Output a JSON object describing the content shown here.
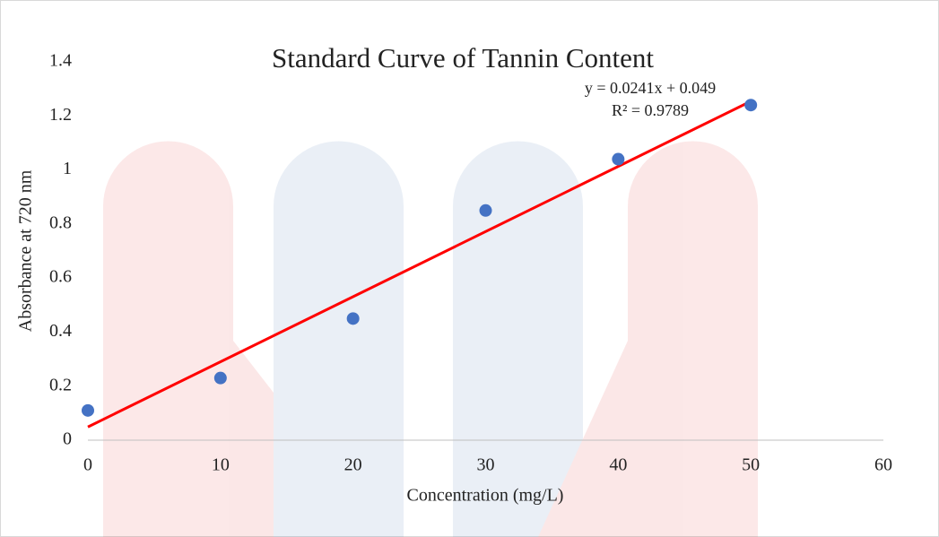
{
  "chart_data": {
    "type": "scatter",
    "title": "Standard Curve of Tannin Content",
    "x_label": "Concentration (mg/L)",
    "y_label": "Absorbance at 720 nm",
    "x": [
      0,
      10,
      20,
      30,
      40,
      50
    ],
    "values": [
      0.11,
      0.23,
      0.45,
      0.85,
      1.04,
      1.24
    ],
    "color": "#4472c4",
    "xlim": [
      0,
      60
    ],
    "xticks": [
      0,
      10,
      20,
      30,
      40,
      50,
      60
    ],
    "ylim": [
      0,
      1.4
    ],
    "yticks": [
      0,
      0.2,
      0.4,
      0.6,
      0.8,
      1,
      1.2,
      1.4
    ],
    "trendline": {
      "slope": 0.0241,
      "intercept": 0.049,
      "color": "#ff0000",
      "equation": "y = 0.0241x + 0.049",
      "r_squared": 0.9789,
      "r_squared_label": "R² = 0.9789"
    }
  }
}
